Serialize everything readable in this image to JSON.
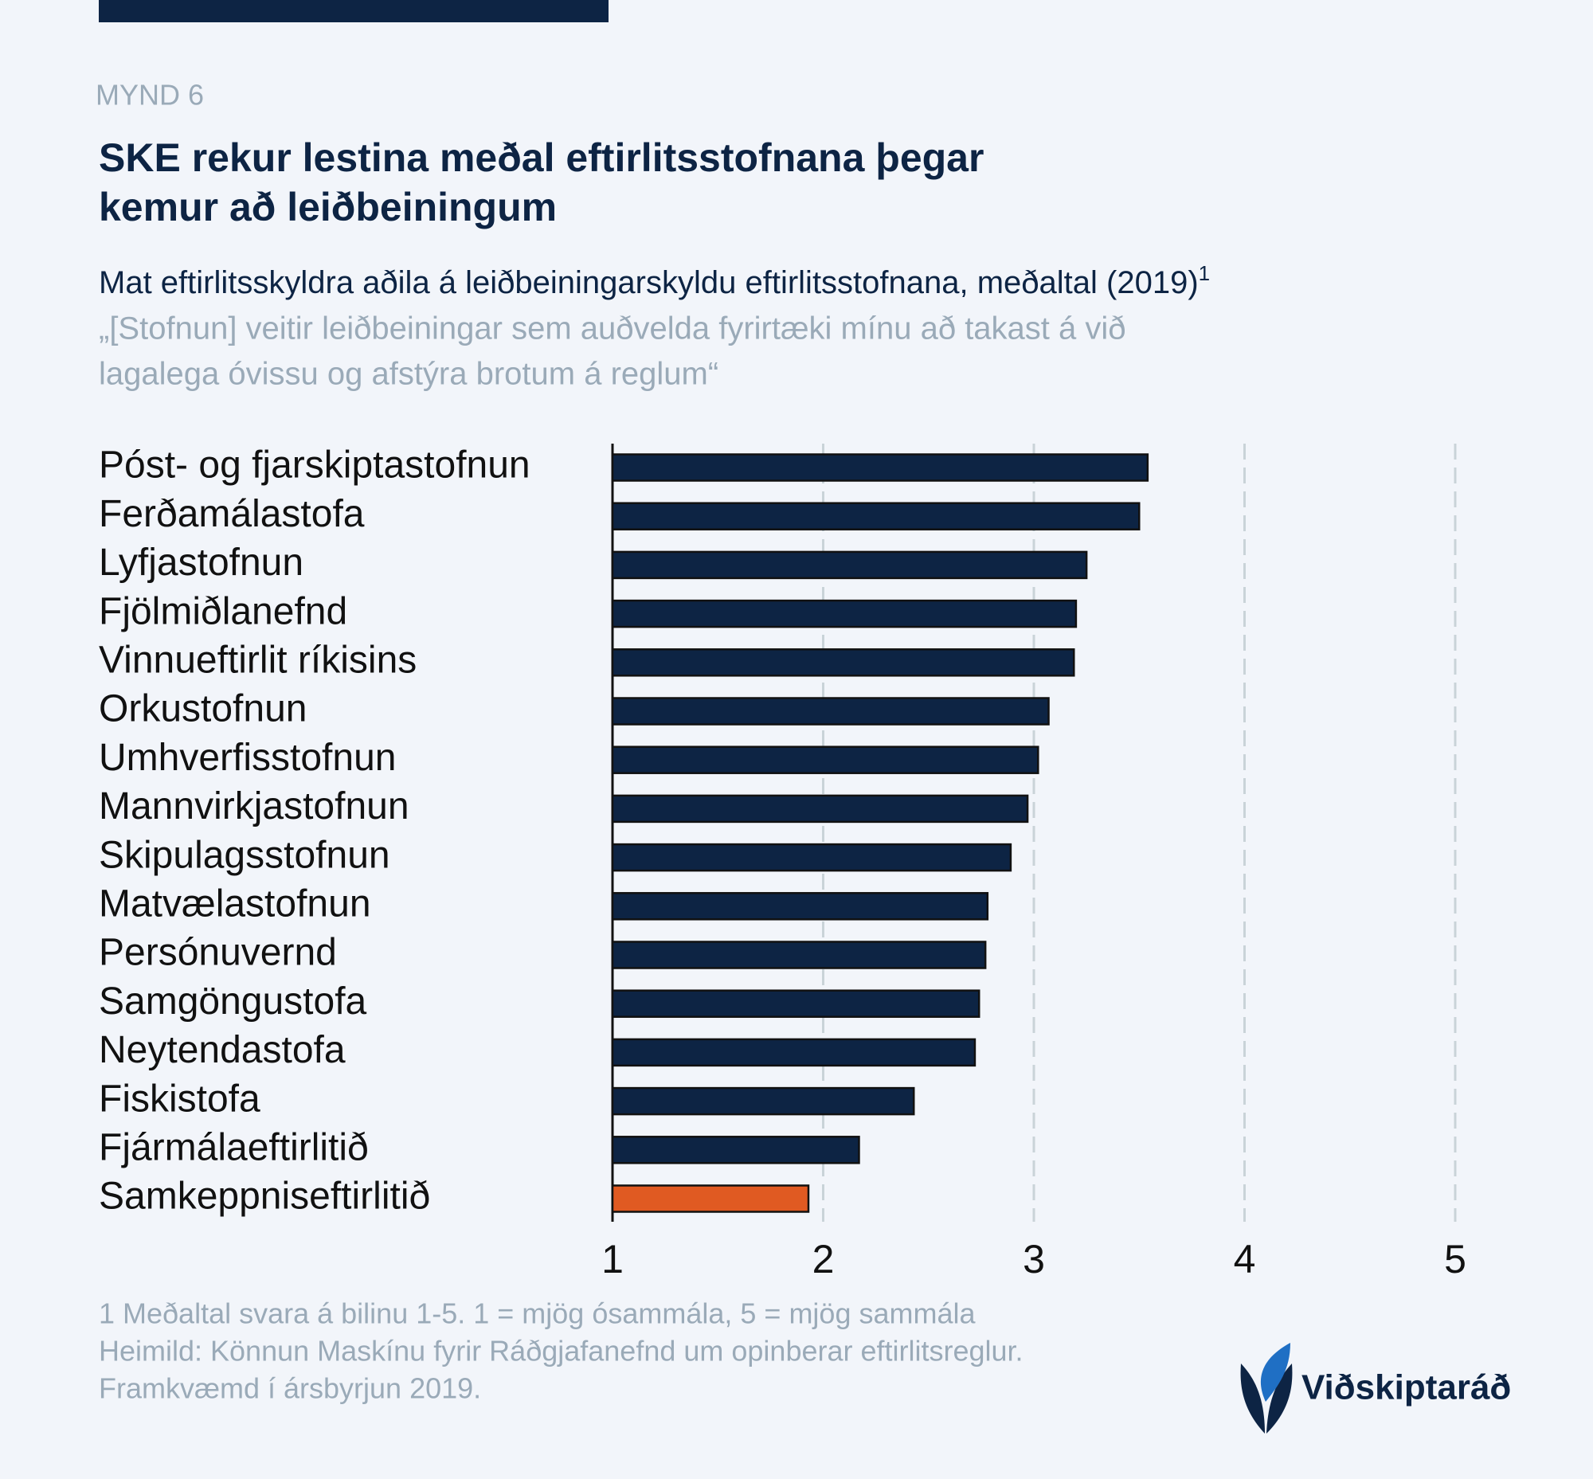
{
  "figure_label": "MYND 6",
  "logo": {
    "text": "Viðskiptaráð"
  },
  "chart_data": {
    "type": "bar",
    "orientation": "horizontal",
    "title": [
      "SKE rekur lestina meðal eftirlitsstofnana þegar",
      "kemur að leiðbeiningum"
    ],
    "subtitle": "Mat eftirlitsskyldra aðila á leiðbeiningarskyldu eftirlitsstofnana, meðaltal (2019)",
    "subtitle_note": "1",
    "quote": [
      "„[Stofnun] veitir leiðbeiningar sem auðvelda fyrirtæki mínu að takast á við",
      "lagalega óvissu og afstýra brotum á reglum“"
    ],
    "categories": [
      "Póst- og fjarskiptastofnun",
      "Ferðamálastofa",
      "Lyfjastofnun",
      "Fjölmiðlanefnd",
      "Vinnueftirlit ríkisins",
      "Orkustofnun",
      "Umhverfisstofnun",
      "Mannvirkjastofnun",
      "Skipulagsstofnun",
      "Matvælastofnun",
      "Persónuvernd",
      "Samgöngustofa",
      "Neytendastofa",
      "Fiskistofa",
      "Fjármálaeftirlitið",
      "Samkeppniseftirlitið"
    ],
    "values": [
      3.54,
      3.5,
      3.25,
      3.2,
      3.19,
      3.07,
      3.02,
      2.97,
      2.89,
      2.78,
      2.77,
      2.74,
      2.72,
      2.43,
      2.17,
      1.93
    ],
    "colors": [
      "#0d2444",
      "#0d2444",
      "#0d2444",
      "#0d2444",
      "#0d2444",
      "#0d2444",
      "#0d2444",
      "#0d2444",
      "#0d2444",
      "#0d2444",
      "#0d2444",
      "#0d2444",
      "#0d2444",
      "#0d2444",
      "#0d2444",
      "#e05a22"
    ],
    "xlim": [
      1,
      5
    ],
    "xticks": [
      1,
      2,
      3,
      4,
      5
    ],
    "grid": true,
    "notes": [
      "1 Meðaltal svara á bilinu 1-5. 1 = mjög ósammála, 5 = mjög sammála",
      "Heimild: Könnun Maskínu fyrir Ráðgjafanefnd um opinberar eftirlitsreglur.",
      "Framkvæmd í ársbyrjun 2019."
    ]
  }
}
